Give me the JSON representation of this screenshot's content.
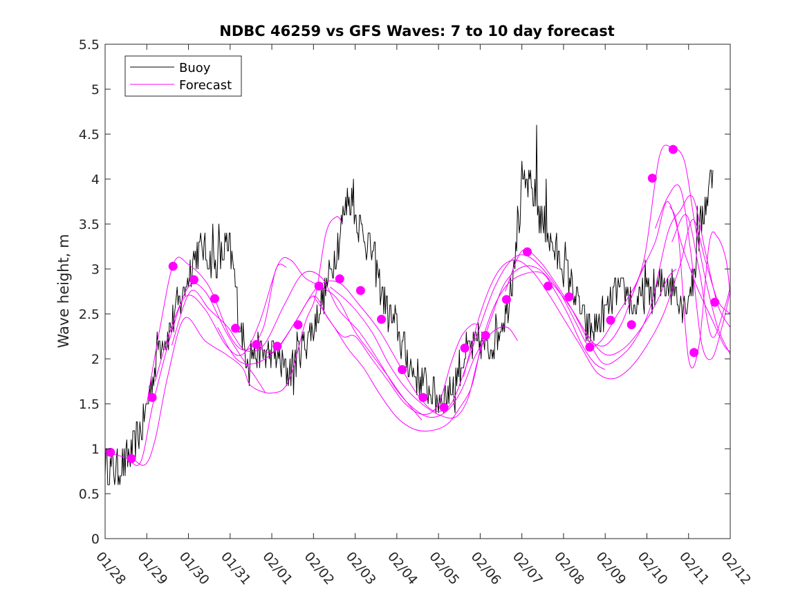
{
  "chart_data": {
    "type": "line",
    "title": "NDBC 46259 vs GFS Waves: 7 to 10 day forecast",
    "xlabel": "",
    "ylabel": "Wave height, m",
    "xlim": [
      0,
      15
    ],
    "ylim": [
      0,
      5.5
    ],
    "yticks": [
      0,
      0.5,
      1,
      1.5,
      2,
      2.5,
      3,
      3.5,
      4,
      4.5,
      5,
      5.5
    ],
    "ytick_labels": [
      "0",
      "0.5",
      "1",
      "1.5",
      "2",
      "2.5",
      "3",
      "3.5",
      "4",
      "4.5",
      "5",
      "5.5"
    ],
    "xtick_labels": [
      "01/28",
      "01/29",
      "01/30",
      "01/31",
      "02/01",
      "02/02",
      "02/03",
      "02/04",
      "02/05",
      "02/06",
      "02/07",
      "02/08",
      "02/09",
      "02/10",
      "02/11",
      "02/12"
    ],
    "grid": false,
    "legend": {
      "position": "top-left",
      "entries": [
        {
          "label": "Buoy",
          "color": "#000000"
        },
        {
          "label": "Forecast",
          "color": "#ff00ff"
        }
      ]
    },
    "colors": {
      "buoy": "#000000",
      "forecast": "#ff00ff"
    },
    "buoy_anchors": [
      [
        0.0,
        0.85
      ],
      [
        0.15,
        0.8
      ],
      [
        0.3,
        0.75
      ],
      [
        0.5,
        0.85
      ],
      [
        0.7,
        1.05
      ],
      [
        0.9,
        1.25
      ],
      [
        1.1,
        1.7
      ],
      [
        1.3,
        2.2
      ],
      [
        1.5,
        2.25
      ],
      [
        1.7,
        2.55
      ],
      [
        1.9,
        2.75
      ],
      [
        2.1,
        3.1
      ],
      [
        2.3,
        3.25
      ],
      [
        2.5,
        3.1
      ],
      [
        2.7,
        3.05
      ],
      [
        2.9,
        3.25
      ],
      [
        3.05,
        3.1
      ],
      [
        3.2,
        2.5
      ],
      [
        3.35,
        2.1
      ],
      [
        3.6,
        2.05
      ],
      [
        4.0,
        2.05
      ],
      [
        4.2,
        1.95
      ],
      [
        4.4,
        1.85
      ],
      [
        4.6,
        2.05
      ],
      [
        4.8,
        2.2
      ],
      [
        5.0,
        2.35
      ],
      [
        5.2,
        2.65
      ],
      [
        5.4,
        2.95
      ],
      [
        5.6,
        3.3
      ],
      [
        5.75,
        3.65
      ],
      [
        5.9,
        3.75
      ],
      [
        6.05,
        3.55
      ],
      [
        6.2,
        3.4
      ],
      [
        6.4,
        3.2
      ],
      [
        6.6,
        2.85
      ],
      [
        6.8,
        2.5
      ],
      [
        7.0,
        2.35
      ],
      [
        7.2,
        2.05
      ],
      [
        7.4,
        1.85
      ],
      [
        7.6,
        1.75
      ],
      [
        7.8,
        1.65
      ],
      [
        8.0,
        1.55
      ],
      [
        8.2,
        1.6
      ],
      [
        8.4,
        1.75
      ],
      [
        8.6,
        2.05
      ],
      [
        8.8,
        2.1
      ],
      [
        9.0,
        2.2
      ],
      [
        9.2,
        2.1
      ],
      [
        9.4,
        2.3
      ],
      [
        9.6,
        2.5
      ],
      [
        9.75,
        2.85
      ],
      [
        9.9,
        3.5
      ],
      [
        10.1,
        3.95
      ],
      [
        10.3,
        3.8
      ],
      [
        10.5,
        3.5
      ],
      [
        10.7,
        3.3
      ],
      [
        10.9,
        3.1
      ],
      [
        11.1,
        2.95
      ],
      [
        11.3,
        2.7
      ],
      [
        11.5,
        2.4
      ],
      [
        11.7,
        2.3
      ],
      [
        11.9,
        2.45
      ],
      [
        12.1,
        2.6
      ],
      [
        12.3,
        2.75
      ],
      [
        12.5,
        2.75
      ],
      [
        12.7,
        2.55
      ],
      [
        12.9,
        2.7
      ],
      [
        13.1,
        2.75
      ],
      [
        13.3,
        2.8
      ],
      [
        13.5,
        2.85
      ],
      [
        13.7,
        2.75
      ],
      [
        13.9,
        2.6
      ],
      [
        14.1,
        2.85
      ],
      [
        14.3,
        3.5
      ],
      [
        14.45,
        3.8
      ],
      [
        14.6,
        4.15
      ]
    ],
    "buoy_spikes": [
      [
        2.58,
        3.5
      ],
      [
        2.72,
        3.5
      ],
      [
        3.0,
        3.4
      ],
      [
        5.82,
        3.9
      ],
      [
        5.95,
        4.0
      ],
      [
        10.0,
        4.2
      ],
      [
        10.2,
        4.1
      ],
      [
        10.36,
        4.6
      ],
      [
        10.58,
        4.0
      ],
      [
        11.05,
        3.3
      ],
      [
        12.95,
        3.1
      ],
      [
        14.2,
        3.7
      ],
      [
        4.52,
        1.6
      ],
      [
        0.33,
        0.7
      ],
      [
        8.4,
        1.4
      ],
      [
        3.45,
        1.7
      ]
    ],
    "forecast_points": [
      {
        "x": 0.13,
        "y": 0.96
      },
      {
        "x": 0.63,
        "y": 0.89
      },
      {
        "x": 1.13,
        "y": 1.57
      },
      {
        "x": 1.63,
        "y": 3.03
      },
      {
        "x": 2.13,
        "y": 2.88
      },
      {
        "x": 2.63,
        "y": 2.67
      },
      {
        "x": 3.13,
        "y": 2.34
      },
      {
        "x": 3.63,
        "y": 2.16
      },
      {
        "x": 4.13,
        "y": 2.14
      },
      {
        "x": 4.63,
        "y": 2.38
      },
      {
        "x": 5.13,
        "y": 2.81
      },
      {
        "x": 5.63,
        "y": 2.89
      },
      {
        "x": 6.13,
        "y": 2.76
      },
      {
        "x": 6.63,
        "y": 2.44
      },
      {
        "x": 7.13,
        "y": 1.88
      },
      {
        "x": 7.63,
        "y": 1.57
      },
      {
        "x": 8.13,
        "y": 1.46
      },
      {
        "x": 8.63,
        "y": 2.12
      },
      {
        "x": 9.13,
        "y": 2.26
      },
      {
        "x": 9.63,
        "y": 2.66
      },
      {
        "x": 10.13,
        "y": 3.19
      },
      {
        "x": 10.63,
        "y": 2.81
      },
      {
        "x": 11.13,
        "y": 2.69
      },
      {
        "x": 11.63,
        "y": 2.13
      },
      {
        "x": 12.13,
        "y": 2.43
      },
      {
        "x": 12.63,
        "y": 2.38
      },
      {
        "x": 13.13,
        "y": 4.01
      },
      {
        "x": 13.63,
        "y": 4.33
      },
      {
        "x": 14.13,
        "y": 2.07
      },
      {
        "x": 14.63,
        "y": 2.63
      }
    ],
    "forecast_lines": [
      [
        [
          0.0,
          0.97
        ],
        [
          0.5,
          0.9
        ],
        [
          0.85,
          0.85
        ],
        [
          1.15,
          1.5
        ],
        [
          1.6,
          2.3
        ],
        [
          2.0,
          2.8
        ],
        [
          2.4,
          2.75
        ],
        [
          2.9,
          2.3
        ],
        [
          3.3,
          2.0
        ],
        [
          3.6,
          1.8
        ],
        [
          3.85,
          1.62
        ]
      ],
      [
        [
          0.6,
          0.92
        ],
        [
          0.95,
          0.82
        ],
        [
          1.2,
          1.1
        ],
        [
          1.5,
          1.8
        ],
        [
          1.9,
          2.45
        ],
        [
          2.4,
          2.2
        ],
        [
          2.9,
          2.05
        ],
        [
          3.3,
          1.9
        ],
        [
          3.5,
          1.7
        ],
        [
          4.0,
          1.62
        ],
        [
          4.4,
          1.75
        ],
        [
          4.8,
          2.4
        ],
        [
          5.05,
          2.7
        ],
        [
          5.3,
          3.4
        ],
        [
          5.55,
          3.58
        ],
        [
          5.7,
          3.5
        ]
      ],
      [
        [
          1.0,
          1.5
        ],
        [
          1.3,
          2.3
        ],
        [
          1.65,
          3.07
        ],
        [
          2.0,
          3.05
        ],
        [
          2.5,
          2.8
        ],
        [
          3.0,
          2.25
        ],
        [
          3.4,
          2.1
        ],
        [
          3.8,
          2.35
        ],
        [
          4.1,
          3.0
        ],
        [
          4.35,
          3.02
        ]
      ],
      [
        [
          1.2,
          1.75
        ],
        [
          1.55,
          2.3
        ],
        [
          1.95,
          2.7
        ],
        [
          2.4,
          2.55
        ],
        [
          2.9,
          2.15
        ],
        [
          3.3,
          2.05
        ],
        [
          3.7,
          2.4
        ],
        [
          4.15,
          3.05
        ],
        [
          4.45,
          3.1
        ],
        [
          4.8,
          2.9
        ],
        [
          5.2,
          2.8
        ],
        [
          5.6,
          2.65
        ],
        [
          6.0,
          2.3
        ],
        [
          6.4,
          2.05
        ],
        [
          6.8,
          1.8
        ],
        [
          7.1,
          1.6
        ],
        [
          7.45,
          1.4
        ],
        [
          7.6,
          1.32
        ]
      ],
      [
        [
          1.6,
          2.15
        ],
        [
          2.05,
          2.75
        ],
        [
          2.5,
          2.55
        ],
        [
          2.95,
          2.35
        ],
        [
          3.35,
          2.1
        ],
        [
          3.8,
          2.15
        ],
        [
          4.3,
          2.6
        ],
        [
          4.75,
          2.95
        ],
        [
          5.2,
          2.9
        ],
        [
          5.6,
          2.55
        ],
        [
          6.1,
          2.3
        ],
        [
          6.6,
          1.95
        ],
        [
          7.0,
          1.65
        ],
        [
          7.4,
          1.45
        ],
        [
          7.8,
          1.35
        ],
        [
          8.2,
          1.42
        ],
        [
          8.55,
          1.65
        ],
        [
          8.9,
          2.05
        ],
        [
          9.3,
          2.3
        ],
        [
          9.65,
          2.35
        ],
        [
          9.9,
          2.2
        ]
      ],
      [
        [
          2.7,
          2.35
        ],
        [
          3.15,
          2.0
        ],
        [
          3.6,
          1.95
        ],
        [
          4.1,
          2.1
        ],
        [
          4.55,
          2.4
        ],
        [
          5.0,
          2.7
        ],
        [
          5.35,
          2.45
        ],
        [
          5.7,
          2.25
        ],
        [
          6.0,
          2.25
        ],
        [
          6.4,
          2.0
        ],
        [
          6.8,
          1.75
        ],
        [
          7.2,
          1.5
        ],
        [
          7.65,
          1.38
        ],
        [
          8.0,
          1.5
        ],
        [
          8.3,
          1.95
        ],
        [
          8.55,
          2.25
        ],
        [
          8.8,
          2.38
        ],
        [
          8.95,
          2.38
        ]
      ],
      [
        [
          3.6,
          2.15
        ],
        [
          4.05,
          2.08
        ],
        [
          4.55,
          2.4
        ],
        [
          5.1,
          2.8
        ],
        [
          5.6,
          2.85
        ],
        [
          6.1,
          2.6
        ],
        [
          6.6,
          2.3
        ],
        [
          7.1,
          1.9
        ],
        [
          7.5,
          1.6
        ],
        [
          7.9,
          1.42
        ],
        [
          8.3,
          1.5
        ],
        [
          8.65,
          1.9
        ],
        [
          8.95,
          2.3
        ],
        [
          9.35,
          2.8
        ],
        [
          9.75,
          3.1
        ],
        [
          10.1,
          3.15
        ],
        [
          10.5,
          3.0
        ],
        [
          10.9,
          2.75
        ],
        [
          11.3,
          2.4
        ],
        [
          11.6,
          2.15
        ],
        [
          11.9,
          2.2
        ],
        [
          12.3,
          2.5
        ],
        [
          12.7,
          2.8
        ],
        [
          13.0,
          3.1
        ]
      ],
      [
        [
          5.0,
          2.7
        ],
        [
          5.5,
          2.35
        ],
        [
          5.85,
          2.1
        ],
        [
          6.2,
          1.9
        ],
        [
          6.6,
          1.6
        ],
        [
          7.0,
          1.35
        ],
        [
          7.4,
          1.22
        ],
        [
          7.8,
          1.2
        ],
        [
          8.2,
          1.27
        ],
        [
          8.5,
          1.45
        ],
        [
          8.8,
          1.7
        ],
        [
          9.05,
          2.2
        ],
        [
          9.35,
          2.6
        ],
        [
          9.7,
          2.85
        ],
        [
          10.1,
          2.95
        ],
        [
          10.5,
          2.95
        ],
        [
          10.8,
          2.75
        ],
        [
          11.1,
          2.5
        ],
        [
          11.45,
          2.15
        ],
        [
          11.75,
          1.95
        ],
        [
          12.0,
          1.88
        ]
      ],
      [
        [
          5.4,
          2.8
        ],
        [
          5.9,
          2.6
        ],
        [
          6.4,
          2.3
        ],
        [
          6.8,
          1.95
        ],
        [
          7.2,
          1.68
        ],
        [
          7.6,
          1.5
        ],
        [
          8.0,
          1.38
        ],
        [
          8.4,
          1.35
        ],
        [
          8.7,
          1.55
        ],
        [
          8.95,
          2.0
        ],
        [
          9.3,
          2.5
        ],
        [
          9.6,
          2.85
        ],
        [
          10.0,
          3.02
        ],
        [
          10.4,
          3.0
        ],
        [
          10.8,
          2.8
        ],
        [
          11.2,
          2.55
        ],
        [
          11.6,
          2.25
        ],
        [
          12.0,
          2.05
        ],
        [
          12.4,
          2.1
        ],
        [
          12.8,
          2.3
        ],
        [
          13.2,
          2.6
        ],
        [
          13.5,
          2.9
        ],
        [
          13.7,
          3.0
        ]
      ],
      [
        [
          8.6,
          1.8
        ],
        [
          9.0,
          2.5
        ],
        [
          9.4,
          2.95
        ],
        [
          9.8,
          3.1
        ],
        [
          10.2,
          3.0
        ],
        [
          10.6,
          2.75
        ],
        [
          11.0,
          2.45
        ],
        [
          11.4,
          2.15
        ],
        [
          11.8,
          1.85
        ],
        [
          12.2,
          1.78
        ],
        [
          12.6,
          1.9
        ],
        [
          13.0,
          2.15
        ],
        [
          13.4,
          2.5
        ],
        [
          13.8,
          3.05
        ],
        [
          14.1,
          3.55
        ],
        [
          14.4,
          3.1
        ],
        [
          14.7,
          2.65
        ],
        [
          15.0,
          2.5
        ]
      ],
      [
        [
          9.6,
          2.75
        ],
        [
          10.0,
          3.2
        ],
        [
          10.4,
          3.1
        ],
        [
          10.8,
          2.85
        ],
        [
          11.2,
          2.55
        ],
        [
          11.6,
          2.2
        ],
        [
          11.95,
          1.95
        ],
        [
          12.3,
          2.0
        ],
        [
          12.7,
          2.2
        ],
        [
          13.1,
          2.6
        ],
        [
          13.5,
          3.4
        ],
        [
          13.8,
          3.65
        ],
        [
          14.1,
          3.8
        ],
        [
          14.4,
          3.2
        ],
        [
          14.7,
          2.6
        ],
        [
          15.0,
          2.35
        ]
      ],
      [
        [
          11.6,
          2.2
        ],
        [
          12.0,
          2.15
        ],
        [
          12.4,
          2.4
        ],
        [
          12.8,
          2.9
        ],
        [
          13.2,
          3.3
        ],
        [
          13.5,
          3.75
        ],
        [
          13.85,
          3.25
        ],
        [
          14.2,
          2.8
        ],
        [
          14.55,
          2.45
        ],
        [
          14.85,
          2.15
        ],
        [
          15.0,
          2.08
        ]
      ],
      [
        [
          12.6,
          2.65
        ],
        [
          12.95,
          3.15
        ],
        [
          13.3,
          4.25
        ],
        [
          13.6,
          4.35
        ],
        [
          13.9,
          4.2
        ],
        [
          14.15,
          3.5
        ],
        [
          14.4,
          2.9
        ],
        [
          14.7,
          2.35
        ],
        [
          15.0,
          2.05
        ]
      ],
      [
        [
          13.2,
          3.45
        ],
        [
          13.5,
          3.8
        ],
        [
          13.8,
          3.9
        ],
        [
          14.05,
          3.2
        ],
        [
          14.3,
          2.2
        ],
        [
          14.55,
          2.0
        ],
        [
          14.8,
          2.35
        ],
        [
          15.0,
          2.75
        ]
      ],
      [
        [
          13.6,
          3.3
        ],
        [
          13.95,
          3.6
        ],
        [
          14.25,
          3.0
        ],
        [
          14.55,
          2.25
        ],
        [
          14.85,
          2.55
        ],
        [
          15.0,
          2.8
        ]
      ],
      [
        [
          13.55,
          3.7
        ],
        [
          13.75,
          3.4
        ],
        [
          14.0,
          2.0
        ],
        [
          14.25,
          2.15
        ],
        [
          14.5,
          3.3
        ],
        [
          14.7,
          3.35
        ],
        [
          14.9,
          3.1
        ],
        [
          15.0,
          2.7
        ]
      ]
    ]
  }
}
